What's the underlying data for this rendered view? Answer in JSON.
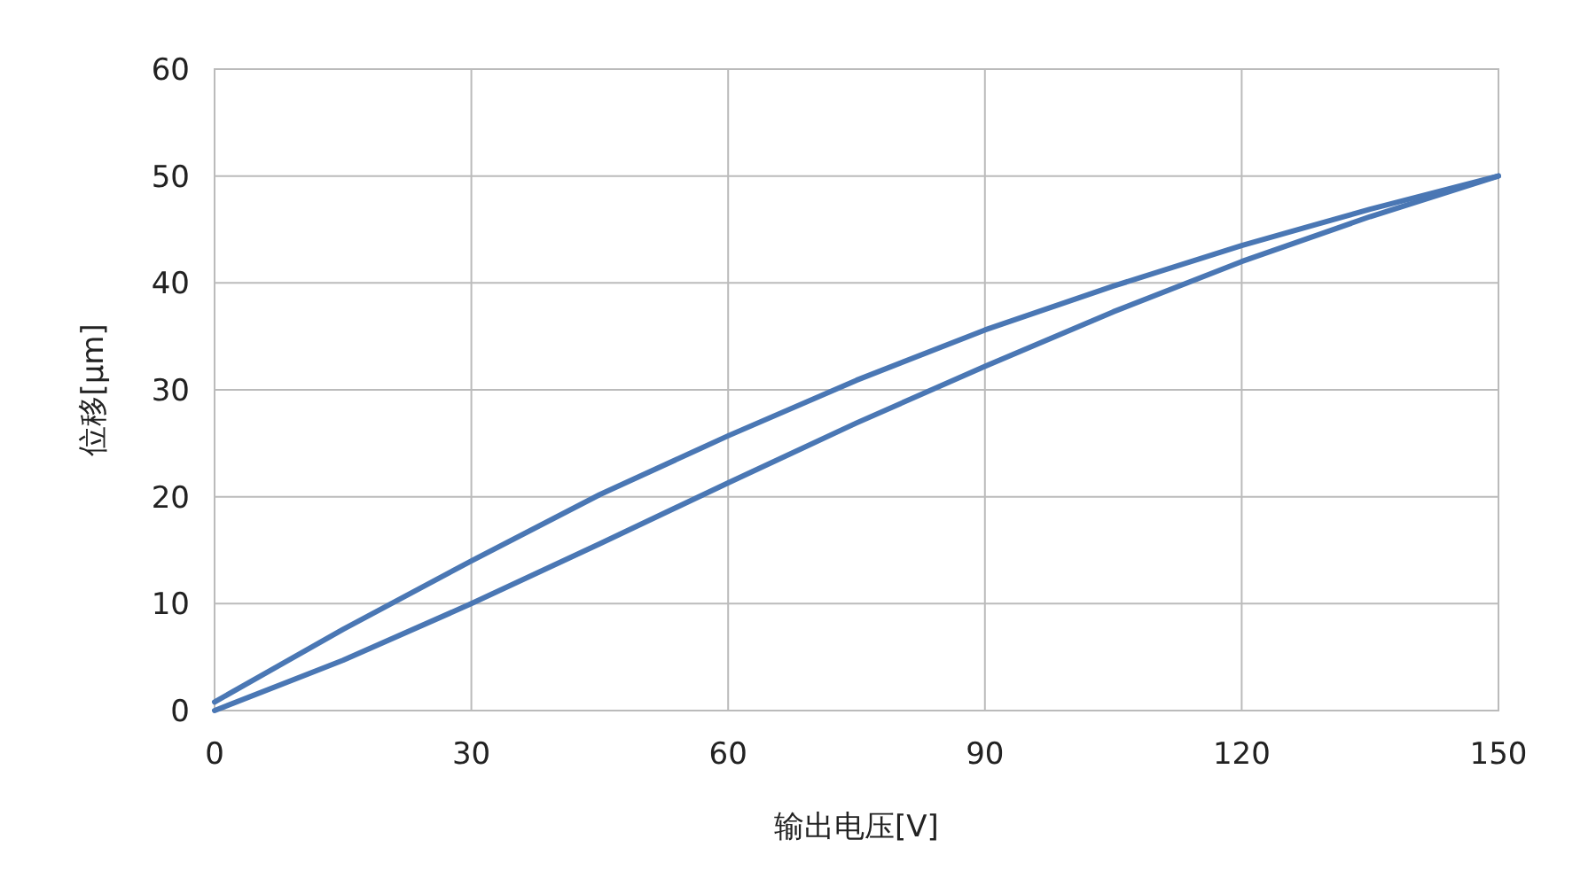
{
  "chart_data": {
    "type": "line",
    "xlabel": "输出电压[V]",
    "ylabel": "位移[μm]",
    "xlim": [
      0,
      150
    ],
    "xticks": [
      0,
      30,
      60,
      90,
      120,
      150
    ],
    "ylim": [
      0,
      60
    ],
    "yticks": [
      0,
      10,
      20,
      30,
      40,
      50,
      60
    ],
    "grid": true,
    "marker": "none",
    "line_style": "solid",
    "series": [
      {
        "color": "#4a77b4",
        "x": [
          0,
          15,
          30,
          45,
          60,
          75,
          90,
          105,
          120,
          135,
          150
        ],
        "values": [
          0,
          4.7,
          10,
          15.6,
          21.3,
          26.9,
          32.2,
          37.3,
          42,
          46.2,
          50
        ]
      },
      {
        "color": "#4a77b4",
        "x": [
          0,
          15,
          30,
          45,
          60,
          75,
          90,
          105,
          120,
          135,
          150
        ],
        "values": [
          0.8,
          7.6,
          14,
          20.2,
          25.7,
          30.9,
          35.6,
          39.7,
          43.5,
          46.9,
          50
        ]
      }
    ]
  }
}
